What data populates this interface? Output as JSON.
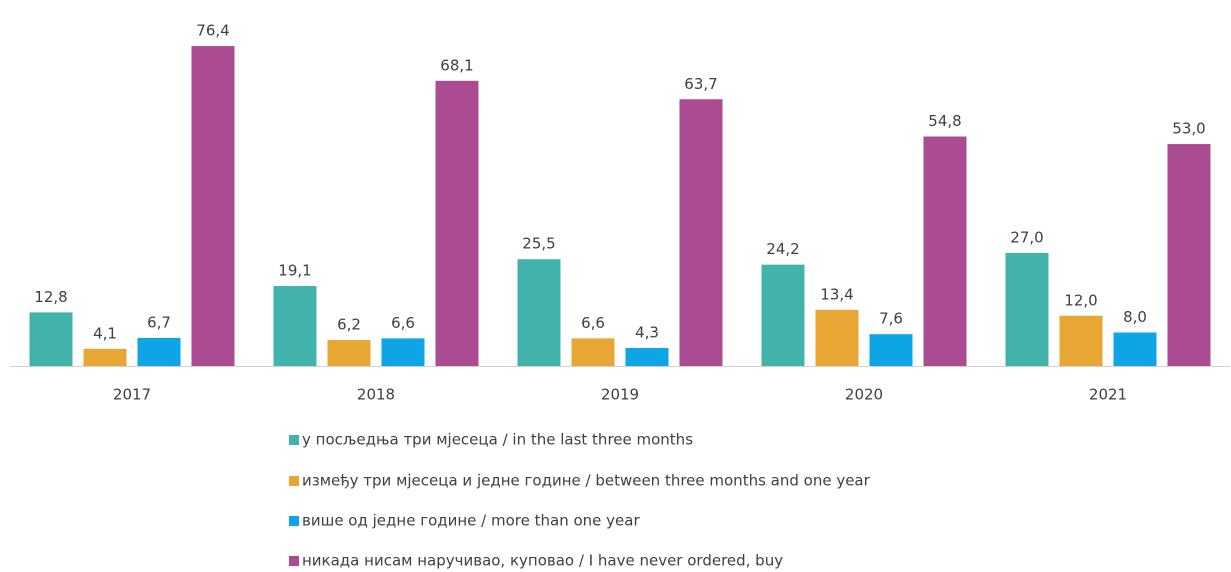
{
  "chart_data": {
    "type": "bar",
    "categories": [
      "2017",
      "2018",
      "2019",
      "2020",
      "2021"
    ],
    "ylim": [
      0,
      80
    ],
    "series": [
      {
        "name": "у посљедња три мјесеца / in the last three months",
        "color": "#41b3ab",
        "values": [
          12.8,
          19.1,
          25.5,
          24.2,
          27.0
        ],
        "value_labels": [
          "12,8",
          "19,1",
          "25,5",
          "24,2",
          "27,0"
        ]
      },
      {
        "name": "између три мјесеца и  једне године  / between three months and one year",
        "color": "#e8a735",
        "values": [
          4.1,
          6.2,
          6.6,
          13.4,
          12.0
        ],
        "value_labels": [
          "4,1",
          "6,2",
          "6,6",
          "13,4",
          "12,0"
        ]
      },
      {
        "name": "више од једне године / more than one year",
        "color": "#0ea5e6",
        "values": [
          6.7,
          6.6,
          4.3,
          7.6,
          8.0
        ],
        "value_labels": [
          "6,7",
          "6,6",
          "4,3",
          "7,6",
          "8,0"
        ]
      },
      {
        "name": "никада нисам  наручивао, куповао / I have  never ordered, buy",
        "color": "#ab4b91",
        "values": [
          76.4,
          68.1,
          63.7,
          54.8,
          53.0
        ],
        "value_labels": [
          "76,4",
          "68,1",
          "63,7",
          "54,8",
          "53,0"
        ]
      }
    ]
  }
}
